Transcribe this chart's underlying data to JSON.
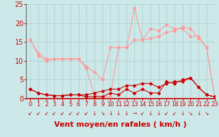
{
  "x": [
    0,
    1,
    2,
    3,
    4,
    5,
    6,
    7,
    8,
    9,
    10,
    11,
    12,
    13,
    14,
    15,
    16,
    17,
    18,
    19,
    20,
    21,
    22,
    23
  ],
  "line_rafales_max": [
    15.5,
    12.0,
    10.5,
    10.5,
    10.5,
    10.5,
    10.5,
    8.5,
    7.0,
    5.0,
    13.5,
    13.5,
    13.5,
    24.0,
    15.5,
    18.5,
    18.0,
    19.5,
    18.5,
    18.5,
    16.5,
    16.5,
    13.5,
    0.5
  ],
  "line_moyen_max": [
    15.5,
    11.5,
    10.0,
    10.5,
    10.5,
    10.5,
    10.5,
    8.0,
    1.0,
    0.5,
    0.5,
    13.5,
    13.5,
    15.5,
    15.5,
    16.0,
    16.5,
    17.5,
    18.0,
    19.0,
    18.5,
    16.0,
    13.5,
    0.5
  ],
  "line_moyen_moy": [
    2.5,
    1.5,
    1.0,
    0.8,
    0.8,
    1.0,
    1.0,
    1.0,
    1.5,
    2.0,
    2.5,
    2.5,
    3.5,
    3.5,
    4.0,
    4.0,
    3.0,
    4.0,
    4.5,
    4.5,
    5.5,
    3.0,
    1.0,
    0.5
  ],
  "line_moyen_min": [
    2.5,
    1.5,
    1.0,
    0.8,
    0.8,
    1.0,
    1.0,
    0.5,
    0.5,
    0.5,
    1.5,
    1.0,
    2.5,
    1.5,
    2.5,
    1.5,
    1.5,
    4.5,
    4.0,
    5.0,
    5.5,
    3.0,
    1.0,
    0.5
  ],
  "xlabel": "Vent moyen/en rafales ( km/h )",
  "ylim": [
    0,
    25
  ],
  "xlim": [
    -0.5,
    23
  ],
  "yticks": [
    0,
    5,
    10,
    15,
    20,
    25
  ],
  "xticks": [
    0,
    1,
    2,
    3,
    4,
    5,
    6,
    7,
    8,
    9,
    10,
    11,
    12,
    13,
    14,
    15,
    16,
    17,
    18,
    19,
    20,
    21,
    22,
    23
  ],
  "bg_color": "#cce8e8",
  "grid_color": "#aacccc",
  "line_color_dark": "#cc0000",
  "line_color_light": "#ff9999",
  "tick_color": "#cc0000",
  "label_color": "#cc0000",
  "wind_arrows": [
    "↙",
    "↙",
    "↙",
    "↙",
    "↙",
    "↙",
    "↙",
    "↙",
    "↓",
    "↘",
    "↓",
    "↓",
    "↓",
    "→",
    "↙",
    "↓",
    "↓",
    "↙",
    "↙",
    "↓",
    "↘",
    "↓",
    "↘"
  ],
  "xlabel_fontsize": 8,
  "ytick_fontsize": 7,
  "xtick_fontsize": 6
}
